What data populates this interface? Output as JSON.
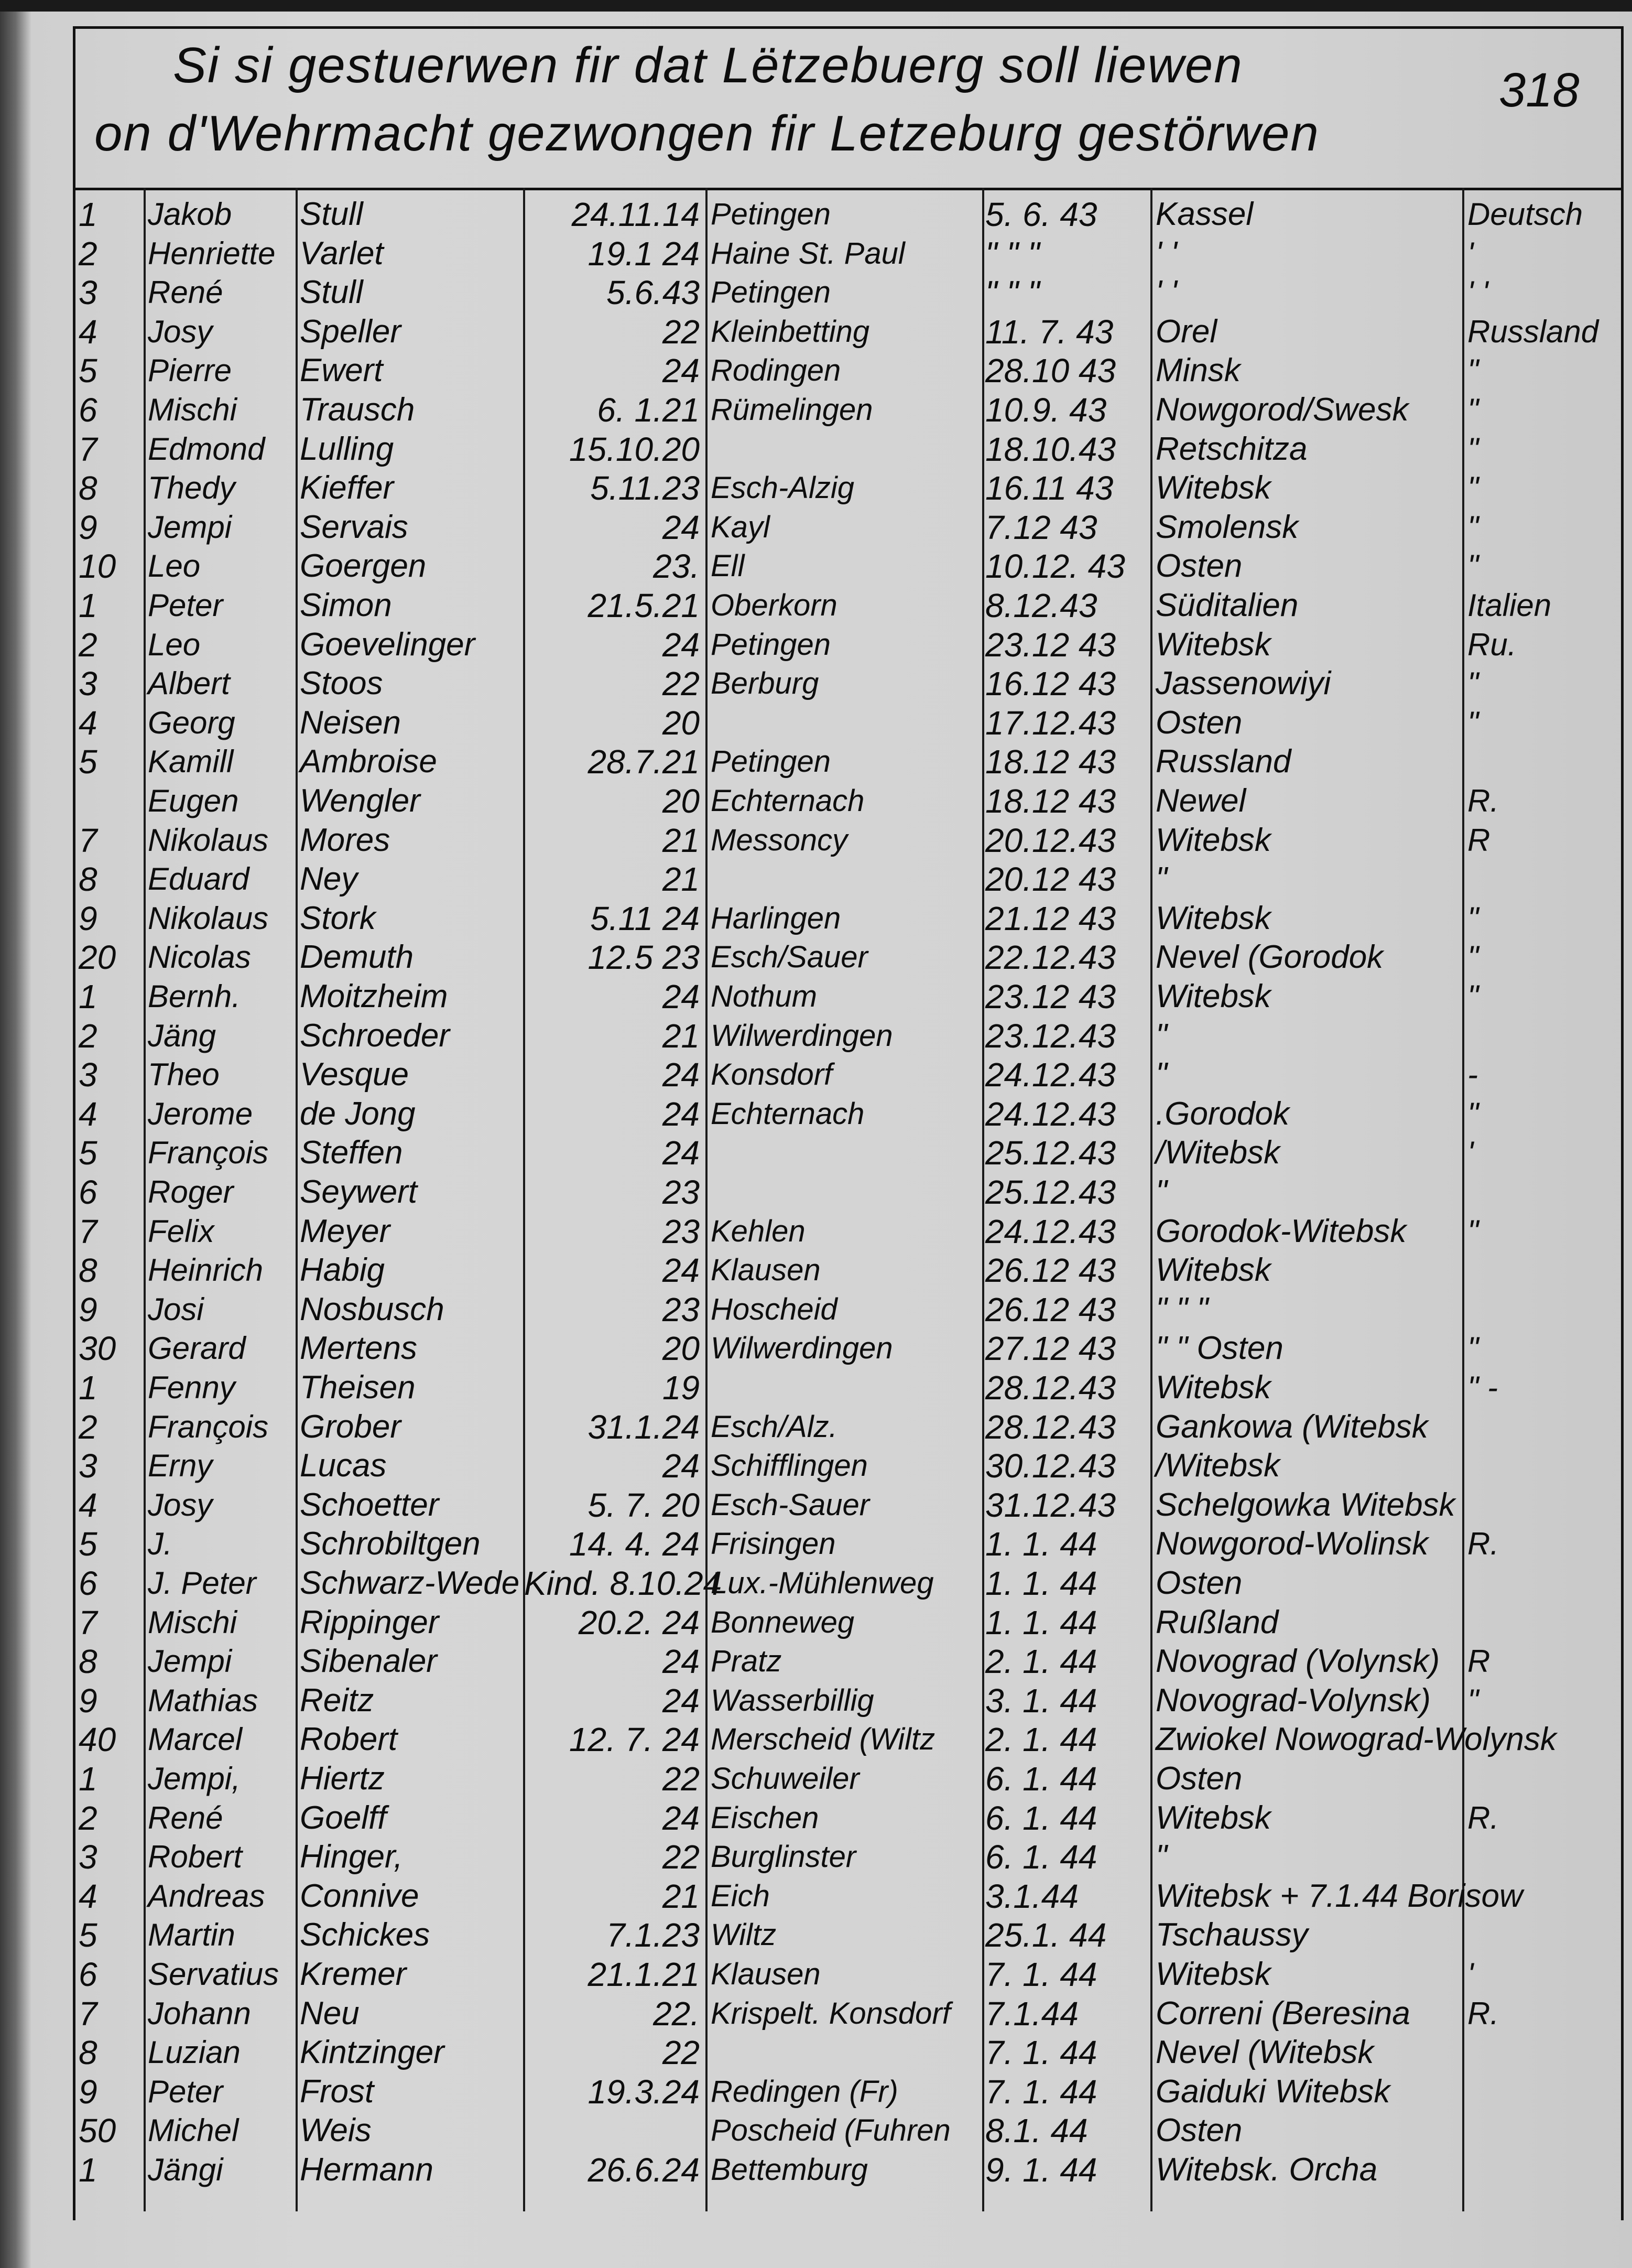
{
  "header": {
    "line1": "Si si gestuerwen fir dat Lëtzebuerg soll liewen",
    "line2": "on d'Wehrmacht gezwongen fir Letzeburg gestörwen",
    "page_number": "318"
  },
  "rows": [
    [
      "1",
      "Jakob",
      "Stull",
      "24.11.14",
      "Petingen",
      "5. 6. 43",
      "Kassel",
      "Deutsch"
    ],
    [
      "2",
      "Henriette",
      "Varlet",
      "19.1 24",
      "Haine St. Paul",
      "\" \" \"",
      "' '",
      "'"
    ],
    [
      "3",
      "René",
      "Stull",
      "5.6.43",
      "Petingen",
      "\" \" \"",
      "' '",
      "' '"
    ],
    [
      "4",
      "Josy",
      "Speller",
      "22",
      "Kleinbetting",
      "11. 7. 43",
      "Orel",
      "Russland"
    ],
    [
      "5",
      "Pierre",
      "Ewert",
      "24",
      "Rodingen",
      "28.10 43",
      "Minsk",
      "\""
    ],
    [
      "6",
      "Mischi",
      "Trausch",
      "6. 1.21",
      "Rümelingen",
      "10.9. 43",
      "Nowgorod/Swesk",
      "\""
    ],
    [
      "7",
      "Edmond",
      "Lulling",
      "15.10.20",
      "",
      "18.10.43",
      "Retschitza",
      "\""
    ],
    [
      "8",
      "Thedy",
      "Kieffer",
      "5.11.23",
      "Esch-Alzig",
      "16.11 43",
      "Witebsk",
      "\""
    ],
    [
      "9",
      "Jempi",
      "Servais",
      "24",
      "Kayl",
      "7.12 43",
      "Smolensk",
      "\""
    ],
    [
      "10",
      "Leo",
      "Goergen",
      "23.",
      "Ell",
      "10.12. 43",
      "Osten",
      "\""
    ],
    [
      "1",
      "Peter",
      "Simon",
      "21.5.21",
      "Oberkorn",
      "8.12.43",
      "Süditalien",
      "Italien"
    ],
    [
      "2",
      "Leo",
      "Goevelinger",
      "24",
      "Petingen",
      "23.12 43",
      "Witebsk",
      "Ru."
    ],
    [
      "3",
      "Albert",
      "Stoos",
      "22",
      "Berburg",
      "16.12 43",
      "Jassenowiyi",
      "\""
    ],
    [
      "4",
      "Georg",
      "Neisen",
      "20",
      "",
      "17.12.43",
      "Osten",
      "\""
    ],
    [
      "5",
      "Kamill",
      "Ambroise",
      "28.7.21",
      "Petingen",
      "18.12 43",
      "Russland",
      ""
    ],
    [
      "",
      "Eugen",
      "Wengler",
      "20",
      "Echternach",
      "18.12 43",
      "Newel",
      "R."
    ],
    [
      "7",
      "Nikolaus",
      "Mores",
      "21",
      "Messoncy",
      "20.12.43",
      "Witebsk",
      "R"
    ],
    [
      "8",
      "Eduard",
      "Ney",
      "21",
      "",
      "20.12 43",
      "\"",
      ""
    ],
    [
      "9",
      "Nikolaus",
      "Stork",
      "5.11 24",
      "Harlingen",
      "21.12 43",
      "Witebsk",
      "\""
    ],
    [
      "20",
      "Nicolas",
      "Demuth",
      "12.5 23",
      "Esch/Sauer",
      "22.12.43",
      "Nevel (Gorodok",
      "\""
    ],
    [
      "1",
      "Bernh.",
      "Moitzheim",
      "24",
      "Nothum",
      "23.12 43",
      "Witebsk",
      "\""
    ],
    [
      "2",
      "Jäng",
      "Schroeder",
      "21",
      "Wilwerdingen",
      "23.12.43",
      "\"",
      ""
    ],
    [
      "3",
      "Theo",
      "Vesque",
      "24",
      "Konsdorf",
      "24.12.43",
      "\"",
      "-"
    ],
    [
      "4",
      "Jerome",
      "de Jong",
      "24",
      "Echternach",
      "24.12.43",
      ".Gorodok",
      "\""
    ],
    [
      "5",
      "François",
      "Steffen",
      "24",
      "",
      "25.12.43",
      "/Witebsk",
      "'"
    ],
    [
      "6",
      "Roger",
      "Seywert",
      "23",
      "",
      "25.12.43",
      "\"",
      ""
    ],
    [
      "7",
      "Felix",
      "Meyer",
      "23",
      "Kehlen",
      "24.12.43",
      "Gorodok-Witebsk",
      "\""
    ],
    [
      "8",
      "Heinrich",
      "Habig",
      "24",
      "Klausen",
      "26.12 43",
      "Witebsk",
      ""
    ],
    [
      "9",
      "Josi",
      "Nosbusch",
      "23",
      "Hoscheid",
      "26.12 43",
      "\" \" \"",
      ""
    ],
    [
      "30",
      "Gerard",
      "Mertens",
      "20",
      "Wilwerdingen",
      "27.12 43",
      "\" \" Osten",
      "\""
    ],
    [
      "1",
      "Fenny",
      "Theisen",
      "19",
      "",
      "28.12.43",
      "Witebsk",
      "\" -"
    ],
    [
      "2",
      "François",
      "Grober",
      "31.1.24",
      "Esch/Alz.",
      "28.12.43",
      "Gankowa (Witebsk",
      ""
    ],
    [
      "3",
      "Erny",
      "Lucas",
      "24",
      "Schifflingen",
      "30.12.43",
      "/Witebsk",
      ""
    ],
    [
      "4",
      "Josy",
      "Schoetter",
      "5. 7. 20",
      "Esch-Sauer",
      "31.12.43",
      "Schelgowka Witebsk",
      ""
    ],
    [
      "5",
      "J.",
      "Schrobiltgen",
      "14. 4. 24",
      "Frisingen",
      "1. 1. 44",
      "Nowgorod-Wolinsk",
      "R."
    ],
    [
      "6",
      "J. Peter",
      "Schwarz-Wede",
      "Kind. 8.10.24",
      "Lux.-Mühlenweg",
      "1. 1. 44",
      "Osten",
      ""
    ],
    [
      "7",
      "Mischi",
      "Rippinger",
      "20.2. 24",
      "Bonneweg",
      "1. 1. 44",
      "Rußland",
      ""
    ],
    [
      "8",
      "Jempi",
      "Sibenaler",
      "24",
      "Pratz",
      "2. 1. 44",
      "Novograd (Volynsk)",
      "R"
    ],
    [
      "9",
      "Mathias",
      "Reitz",
      "24",
      "Wasserbillig",
      "3. 1. 44",
      "Novograd-Volynsk)",
      "\""
    ],
    [
      "40",
      "Marcel",
      "Robert",
      "12. 7. 24",
      "Merscheid (Wiltz",
      "2. 1. 44",
      "Zwiokel Nowograd-Wolynsk",
      ""
    ],
    [
      "1",
      "Jempi,",
      "Hiertz",
      "22",
      "Schuweiler",
      "6. 1. 44",
      "Osten",
      ""
    ],
    [
      "2",
      "René",
      "Goelff",
      "24",
      "Eischen",
      "6. 1. 44",
      "Witebsk",
      "R."
    ],
    [
      "3",
      "Robert",
      "Hinger,",
      "22",
      "Burglinster",
      "6. 1. 44",
      "\"",
      ""
    ],
    [
      "4",
      "Andreas",
      "Connive",
      "21",
      "Eich",
      "3.1.44",
      "Witebsk + 7.1.44 Borisow",
      ""
    ],
    [
      "5",
      "Martin",
      "Schickes",
      "7.1.23",
      "Wiltz",
      "25.1. 44",
      "Tschaussy",
      ""
    ],
    [
      "6",
      "Servatius",
      "Kremer",
      "21.1.21",
      "Klausen",
      "7. 1. 44",
      "Witebsk",
      "'"
    ],
    [
      "7",
      "Johann",
      "Neu",
      "22.",
      "Krispelt. Konsdorf",
      "7.1.44",
      "Correni (Beresina",
      "R."
    ],
    [
      "8",
      "Luzian",
      "Kintzinger",
      "22",
      "",
      "7. 1. 44",
      "Nevel (Witebsk",
      ""
    ],
    [
      "9",
      "Peter",
      "Frost",
      "19.3.24",
      "Redingen (Fr)",
      "7. 1. 44",
      "Gaiduki Witebsk",
      ""
    ],
    [
      "50",
      "Michel",
      "Weis",
      "",
      "Poscheid (Fuhren",
      "8.1. 44",
      "Osten",
      ""
    ],
    [
      "1",
      "Jängi",
      "Hermann",
      "26.6.24",
      "Bettemburg",
      "9. 1. 44",
      "Witebsk. Orcha",
      ""
    ]
  ]
}
